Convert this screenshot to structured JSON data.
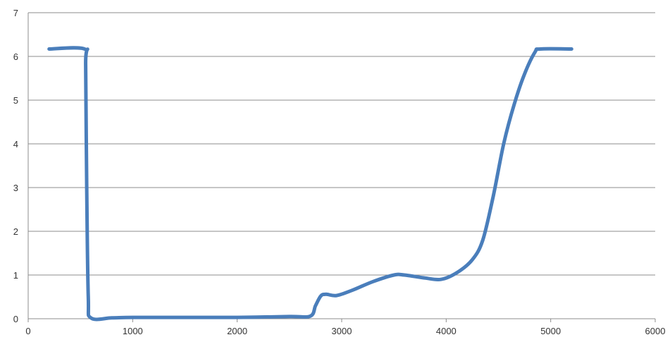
{
  "chart_data": {
    "type": "line",
    "title": "",
    "xlabel": "",
    "ylabel": "",
    "xlim": [
      0,
      6000
    ],
    "ylim": [
      0,
      7
    ],
    "x_ticks": [
      0,
      1000,
      2000,
      3000,
      4000,
      5000,
      6000
    ],
    "y_ticks": [
      0,
      1,
      2,
      3,
      4,
      5,
      6,
      7
    ],
    "x_tick_labels": [
      "0",
      "1000",
      "2000",
      "3000",
      "4000",
      "5000",
      "6000"
    ],
    "y_tick_labels": [
      "0",
      "1",
      "2",
      "3",
      "4",
      "5",
      "6",
      "7"
    ],
    "grid": "horizontal",
    "legend": "none",
    "series": [
      {
        "color": "#4a7ebb",
        "points": [
          [
            200,
            6.17
          ],
          [
            540,
            6.17
          ],
          [
            550,
            5.8
          ],
          [
            560,
            3.0
          ],
          [
            575,
            0.5
          ],
          [
            600,
            0.02
          ],
          [
            800,
            0.02
          ],
          [
            1000,
            0.03
          ],
          [
            1500,
            0.03
          ],
          [
            2000,
            0.03
          ],
          [
            2500,
            0.05
          ],
          [
            2700,
            0.06
          ],
          [
            2750,
            0.3
          ],
          [
            2800,
            0.52
          ],
          [
            2850,
            0.56
          ],
          [
            2950,
            0.53
          ],
          [
            3100,
            0.65
          ],
          [
            3300,
            0.85
          ],
          [
            3500,
            1.0
          ],
          [
            3600,
            1.0
          ],
          [
            3800,
            0.93
          ],
          [
            3950,
            0.9
          ],
          [
            4100,
            1.05
          ],
          [
            4250,
            1.35
          ],
          [
            4350,
            1.8
          ],
          [
            4450,
            2.8
          ],
          [
            4550,
            4.0
          ],
          [
            4650,
            4.9
          ],
          [
            4750,
            5.6
          ],
          [
            4850,
            6.1
          ],
          [
            4900,
            6.17
          ],
          [
            5200,
            6.17
          ]
        ]
      }
    ]
  }
}
